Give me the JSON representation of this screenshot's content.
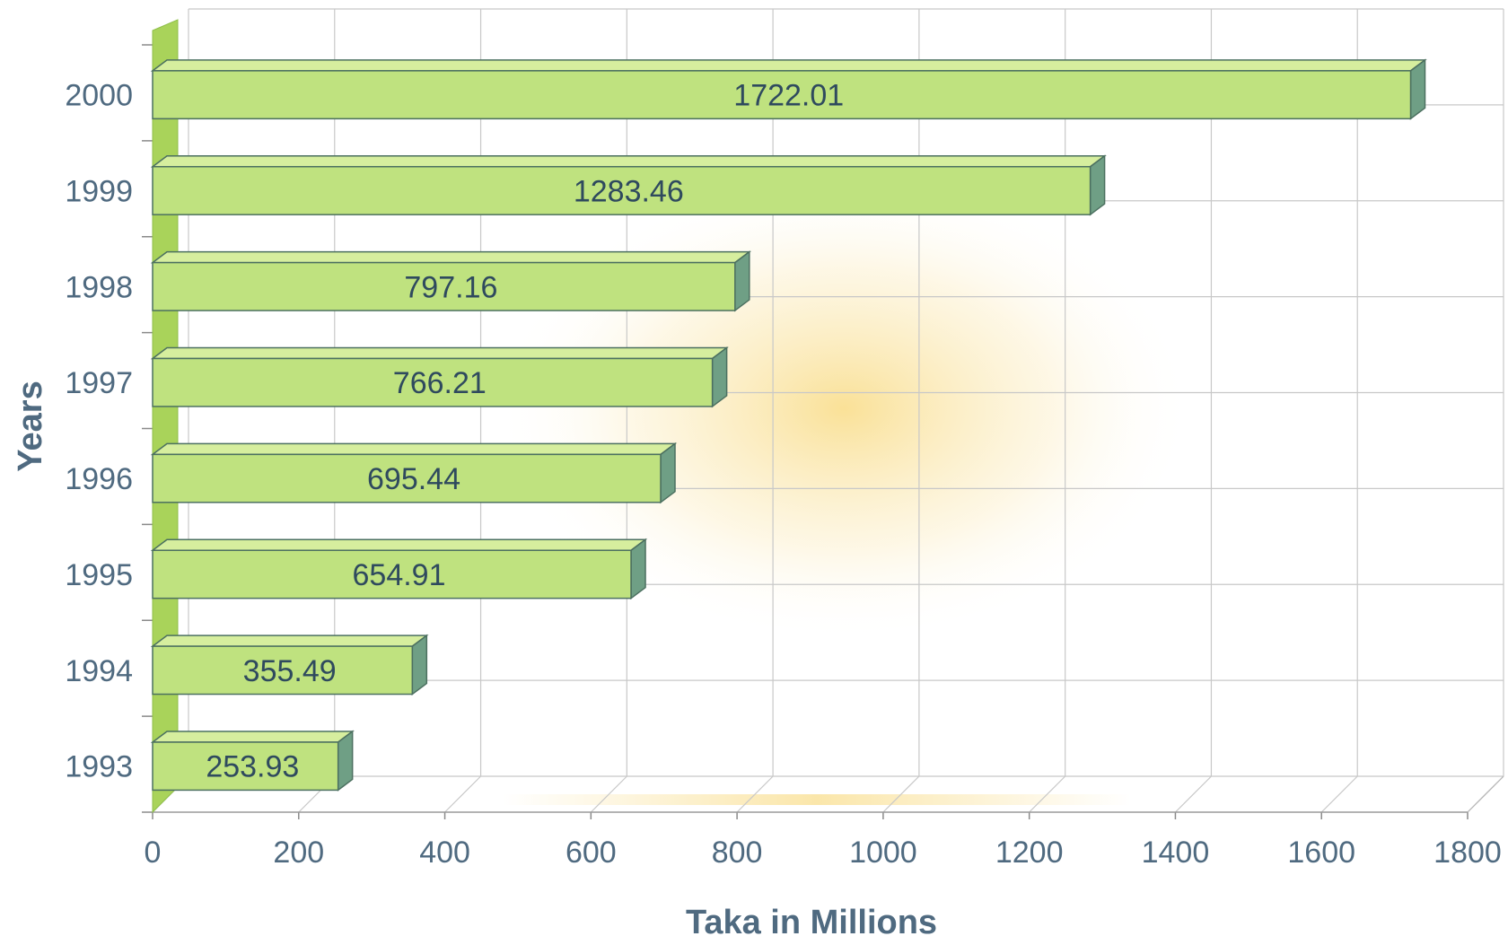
{
  "chart_data": {
    "type": "bar",
    "orientation": "horizontal",
    "style": "3d",
    "categories": [
      "1993",
      "1994",
      "1995",
      "1996",
      "1997",
      "1998",
      "1999",
      "2000"
    ],
    "values": [
      253.93,
      355.49,
      654.91,
      695.44,
      766.21,
      797.16,
      1283.46,
      1722.01
    ],
    "data_labels": [
      "253.93",
      "355.49",
      "654.91",
      "695.44",
      "766.21",
      "797.16",
      "1283.46",
      "1722.01"
    ],
    "xlabel": "Taka in Millions",
    "ylabel": "Years",
    "xlim": [
      0,
      1800
    ],
    "xticks": [
      "0",
      "200",
      "400",
      "600",
      "800",
      "1000",
      "1200",
      "1400",
      "1600",
      "1800"
    ],
    "grid": true,
    "legend": "none",
    "colors": {
      "bar_front": "#bfe27f",
      "bar_top": "#d6ee9e",
      "bar_side": "#6f9f85",
      "bar_outline": "#4c7060",
      "wall": "#a9d35a",
      "glow": "#f5c842"
    }
  }
}
